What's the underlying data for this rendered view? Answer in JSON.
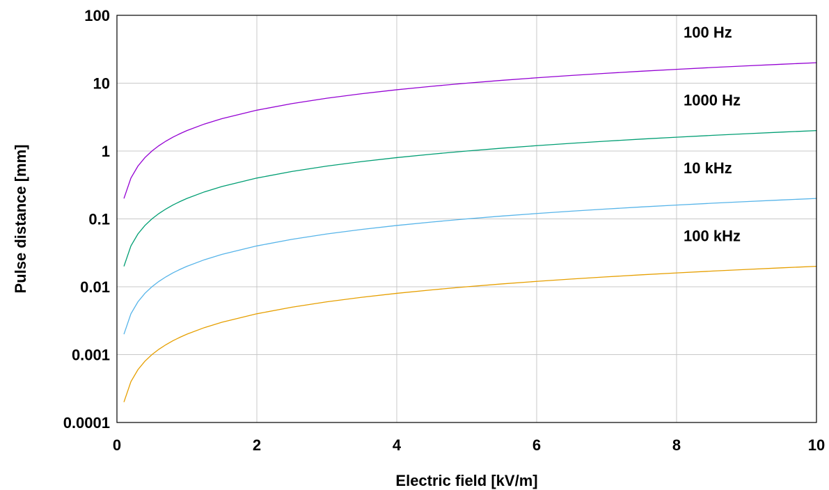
{
  "chart_data": {
    "type": "line",
    "xlabel": "Electric field [kV/m]",
    "ylabel": "Pulse distance [mm]",
    "xlim": [
      0,
      10
    ],
    "ylim": [
      0.0001,
      100
    ],
    "yscale": "log",
    "grid": true,
    "x_ticks": [
      0,
      2,
      4,
      6,
      8,
      10
    ],
    "x_tick_labels": [
      "0",
      "2",
      "4",
      "6",
      "8",
      "10"
    ],
    "y_ticks": [
      0.0001,
      0.001,
      0.01,
      0.1,
      1,
      10,
      100
    ],
    "y_tick_labels": [
      "0.0001",
      "0.001",
      "0.01",
      "0.1",
      "1",
      "10",
      "100"
    ],
    "x": [
      0.1,
      0.2,
      0.3,
      0.4,
      0.5,
      0.6,
      0.7,
      0.8,
      0.9,
      1,
      1.25,
      1.5,
      2,
      2.5,
      3,
      3.5,
      4,
      4.5,
      5,
      5.5,
      6,
      6.5,
      7,
      7.5,
      8,
      8.5,
      9,
      9.5,
      10
    ],
    "series": [
      {
        "name": "100 Hz",
        "color": "#9400d3",
        "values": [
          0.2,
          0.4,
          0.6,
          0.8,
          1.0,
          1.2,
          1.4,
          1.6,
          1.8,
          2.0,
          2.5,
          3.0,
          4.0,
          5.0,
          6.0,
          7.0,
          8.0,
          9.0,
          10.0,
          11.0,
          12.0,
          13.0,
          14.0,
          15.0,
          16.0,
          17.0,
          18.0,
          19.0,
          20.0
        ]
      },
      {
        "name": "1000 Hz",
        "color": "#009e73",
        "values": [
          0.02,
          0.04,
          0.06,
          0.08,
          0.1,
          0.12,
          0.14,
          0.16,
          0.18,
          0.2,
          0.25,
          0.3,
          0.4,
          0.5,
          0.6,
          0.7,
          0.8,
          0.9,
          1.0,
          1.1,
          1.2,
          1.3,
          1.4,
          1.5,
          1.6,
          1.7,
          1.8,
          1.9,
          2.0
        ]
      },
      {
        "name": "10 kHz",
        "color": "#56b4e9",
        "values": [
          0.002,
          0.004,
          0.006,
          0.008,
          0.01,
          0.012,
          0.014,
          0.016,
          0.018,
          0.02,
          0.025,
          0.03,
          0.04,
          0.05,
          0.06,
          0.07,
          0.08,
          0.09,
          0.1,
          0.11,
          0.12,
          0.13,
          0.14,
          0.15,
          0.16,
          0.17,
          0.18,
          0.19,
          0.2
        ]
      },
      {
        "name": "100 kHz",
        "color": "#e69f00",
        "values": [
          0.0002,
          0.0004,
          0.0006,
          0.0008,
          0.001,
          0.0012,
          0.0014,
          0.0016,
          0.0018,
          0.002,
          0.0025,
          0.003,
          0.004,
          0.005,
          0.006,
          0.007,
          0.008,
          0.009,
          0.01,
          0.011,
          0.012,
          0.013,
          0.014,
          0.015,
          0.016,
          0.017,
          0.018,
          0.019,
          0.02
        ]
      }
    ]
  }
}
